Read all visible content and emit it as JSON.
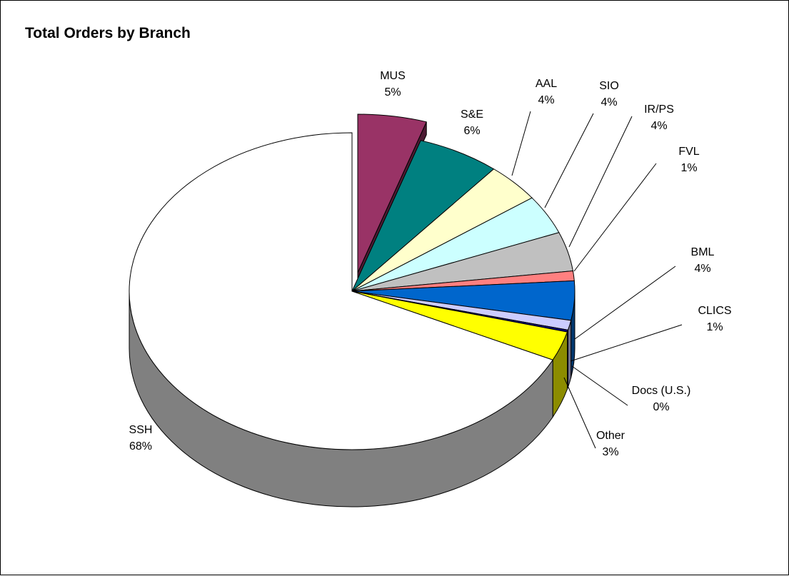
{
  "chart_data": {
    "type": "pie",
    "title": "Total Orders by Branch",
    "style": "3d-exploded",
    "start_angle": "12 o'clock, clockwise",
    "exploded_slice": "MUS",
    "slices": [
      {
        "name": "MUS",
        "value": 5,
        "label": "5%",
        "color": "#993366"
      },
      {
        "name": "S&E",
        "value": 6,
        "label": "6%",
        "color": "#008080"
      },
      {
        "name": "AAL",
        "value": 4,
        "label": "4%",
        "color": "#FFFFCC"
      },
      {
        "name": "SIO",
        "value": 4,
        "label": "4%",
        "color": "#CCFFFF"
      },
      {
        "name": "IR/PS",
        "value": 4,
        "label": "4%",
        "color": "#C0C0C0"
      },
      {
        "name": "FVL",
        "value": 1,
        "label": "1%",
        "color": "#FF8080"
      },
      {
        "name": "BML",
        "value": 4,
        "label": "4%",
        "color": "#0066CC"
      },
      {
        "name": "CLICS",
        "value": 1,
        "label": "1%",
        "color": "#CCCCFF"
      },
      {
        "name": "Docs (U.S.)",
        "value": 0.2,
        "label": "0%",
        "color": "#000080"
      },
      {
        "name": "Other",
        "value": 3,
        "label": "3%",
        "color": "#FFFF00"
      },
      {
        "name": "SSH",
        "value": 68,
        "label": "68%",
        "color": "#FFFFFF"
      }
    ]
  }
}
